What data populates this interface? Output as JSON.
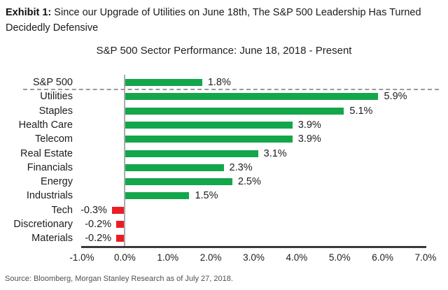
{
  "exhibit": {
    "label": "Exhibit 1:",
    "title_rest": "Since our Upgrade of Utilities on June 18th, The S&P 500 Leadership Has Turned Decidedly Defensive"
  },
  "source": "Source: Bloomberg, Morgan Stanley Research as of July 27, 2018.",
  "colors": {
    "positive_bar": "#14a64b",
    "negative_bar": "#ec1c24",
    "separator": "#9a9a9a",
    "axis": "#ababab",
    "baseline": "#3a3a3a",
    "text": "#1c1c1c"
  },
  "chart_data": {
    "type": "bar",
    "orientation": "horizontal",
    "title": "S&P 500 Sector Performance: June 18, 2018 - Present",
    "categories": [
      "S&P 500",
      "Utilities",
      "Staples",
      "Health Care",
      "Telecom",
      "Real Estate",
      "Financials",
      "Energy",
      "Industrials",
      "Tech",
      "Discretionary",
      "Materials"
    ],
    "values": [
      1.8,
      5.9,
      5.1,
      3.9,
      3.9,
      3.1,
      2.3,
      2.5,
      1.5,
      -0.3,
      -0.2,
      -0.2
    ],
    "value_labels": [
      "1.8%",
      "5.9%",
      "5.1%",
      "3.9%",
      "3.9%",
      "3.1%",
      "2.3%",
      "2.5%",
      "1.5%",
      "-0.3%",
      "-0.2%",
      "-0.2%"
    ],
    "xlim": [
      -1.0,
      7.0
    ],
    "x_ticks": [
      -1.0,
      0.0,
      1.0,
      2.0,
      3.0,
      4.0,
      5.0,
      6.0,
      7.0
    ],
    "x_tick_labels": [
      "-1.0%",
      "0.0%",
      "1.0%",
      "2.0%",
      "3.0%",
      "4.0%",
      "5.0%",
      "6.0%",
      "7.0%"
    ],
    "separator_after_index": 0,
    "grid": false,
    "legend": false
  }
}
